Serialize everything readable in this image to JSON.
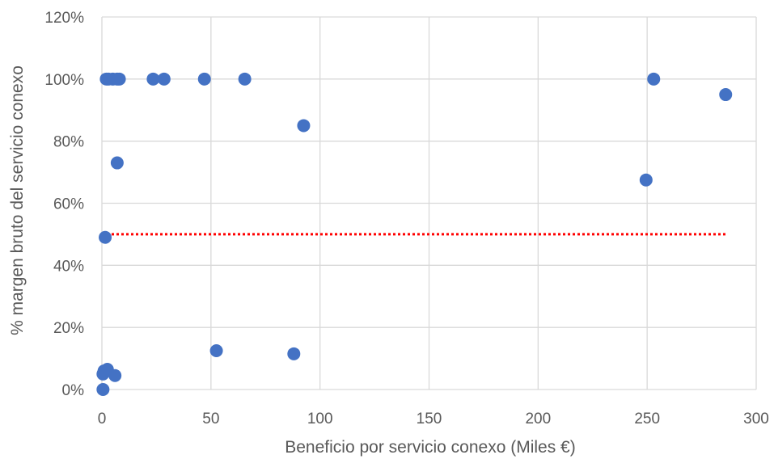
{
  "chart_data": {
    "type": "scatter",
    "title": "",
    "xlabel": "Beneficio por servicio conexo (Miles €)",
    "ylabel": "% margen bruto del servicio conexo",
    "xlim": [
      0,
      300
    ],
    "ylim": [
      0,
      1.2
    ],
    "x_ticks": [
      0,
      50,
      100,
      150,
      200,
      250,
      300
    ],
    "x_tick_labels": [
      "0",
      "50",
      "100",
      "150",
      "200",
      "250",
      "300"
    ],
    "y_ticks": [
      0,
      0.2,
      0.4,
      0.6,
      0.8,
      1.0,
      1.2
    ],
    "y_tick_labels": [
      "0%",
      "20%",
      "40%",
      "60%",
      "80%",
      "100%",
      "120%"
    ],
    "grid": true,
    "legend": "none",
    "marker_color": "#4472C4",
    "reference_line": {
      "y": 0.5,
      "x_range": [
        0,
        286
      ],
      "style": "dotted",
      "color": "#FF0000"
    },
    "points": [
      {
        "x": 0.5,
        "y": 0.0
      },
      {
        "x": 0.5,
        "y": 0.05
      },
      {
        "x": 1.0,
        "y": 0.06
      },
      {
        "x": 2.5,
        "y": 0.065
      },
      {
        "x": 6.0,
        "y": 0.045
      },
      {
        "x": 1.5,
        "y": 0.49
      },
      {
        "x": 7.0,
        "y": 0.73
      },
      {
        "x": 2.0,
        "y": 1.0
      },
      {
        "x": 3.0,
        "y": 1.0
      },
      {
        "x": 5.0,
        "y": 1.0
      },
      {
        "x": 7.0,
        "y": 1.0
      },
      {
        "x": 8.0,
        "y": 1.0
      },
      {
        "x": 23.5,
        "y": 1.0
      },
      {
        "x": 28.5,
        "y": 1.0
      },
      {
        "x": 47.0,
        "y": 1.0
      },
      {
        "x": 65.5,
        "y": 1.0
      },
      {
        "x": 52.5,
        "y": 0.125
      },
      {
        "x": 88.0,
        "y": 0.115
      },
      {
        "x": 92.5,
        "y": 0.85
      },
      {
        "x": 249.5,
        "y": 0.675
      },
      {
        "x": 253.0,
        "y": 1.0
      },
      {
        "x": 286.0,
        "y": 0.95
      }
    ]
  }
}
